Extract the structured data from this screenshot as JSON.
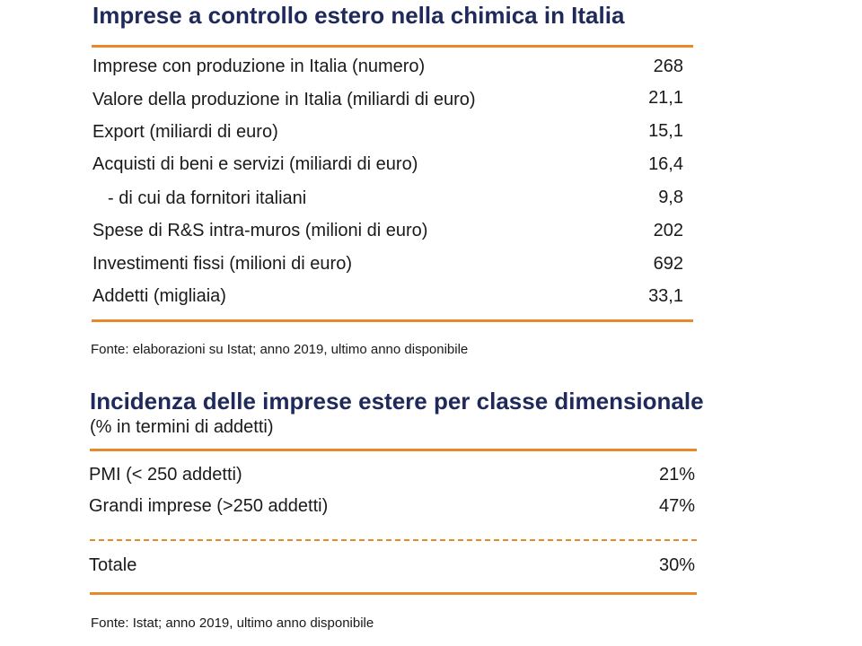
{
  "table1": {
    "title": "Imprese a controllo estero nella chimica in Italia",
    "rows": [
      {
        "label": "Imprese con produzione in Italia (numero)",
        "value": "268"
      },
      {
        "label": "Valore della produzione in Italia (miliardi di euro)",
        "value": "21,1"
      },
      {
        "label": "Export (miliardi di euro)",
        "value": "15,1"
      },
      {
        "label": "Acquisti di beni e servizi (miliardi di euro)",
        "value": "16,4"
      },
      {
        "label": "- di cui da fornitori italiani",
        "value": "9,8"
      },
      {
        "label": "Spese di R&S intra-muros (milioni di euro)",
        "value": "202"
      },
      {
        "label": "Investimenti fissi (milioni di euro)",
        "value": "692"
      },
      {
        "label": "Addetti (migliaia)",
        "value": "33,1"
      }
    ],
    "source": "Fonte: elaborazioni su Istat; anno 2019, ultimo anno disponibile"
  },
  "table2": {
    "title": "Incidenza delle imprese estere per classe dimensionale",
    "subtitle": "(% in termini di addetti)",
    "rows": [
      {
        "label": "PMI (< 250 addetti)",
        "value": "21%"
      },
      {
        "label": "Grandi imprese (>250 addetti)",
        "value": "47%"
      }
    ],
    "total": {
      "label": "Totale",
      "value": "30%"
    },
    "source": "Fonte: Istat; anno 2019, ultimo anno disponibile"
  },
  "colors": {
    "accent": "#e8892b",
    "title": "#1f2a5a"
  }
}
